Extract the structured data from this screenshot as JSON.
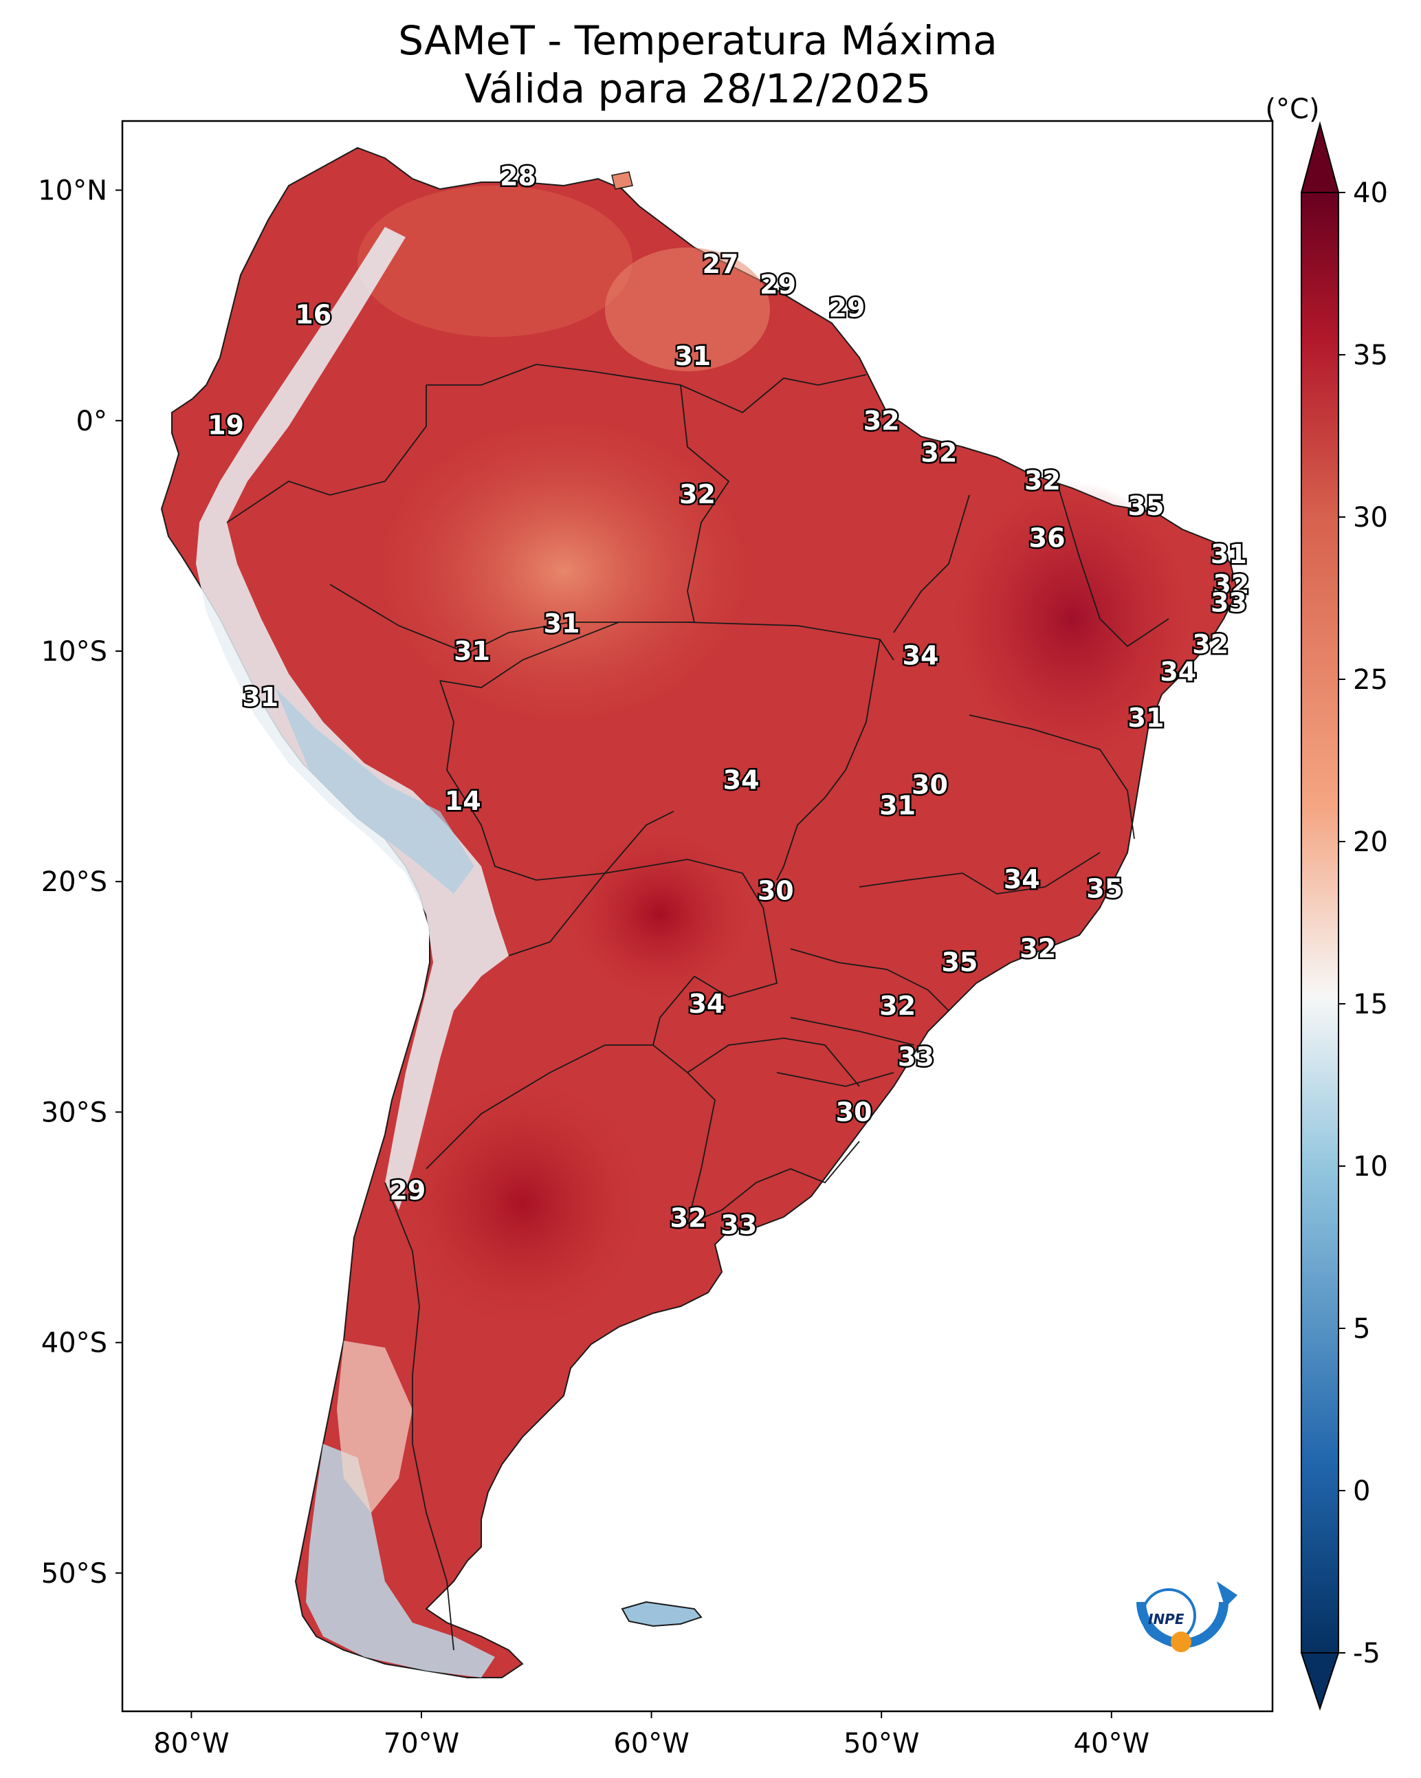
{
  "title": {
    "line1": "SAMeT - Temperatura Máxima",
    "line2": "Válida para 28/12/2025"
  },
  "colorbar": {
    "unit_label": "(°C)",
    "ticks": [
      "40",
      "35",
      "30",
      "25",
      "20",
      "15",
      "10",
      "5",
      "0",
      "-5"
    ],
    "range": [
      -5,
      40
    ],
    "colors": {
      "cold_end": "#053061",
      "cool": "#4393c3",
      "mid": "#f7f7f7",
      "warm": "#f4a582",
      "hot_end": "#67001f"
    }
  },
  "axes": {
    "lat_ticks": [
      "10°N",
      "0°",
      "10°S",
      "20°S",
      "30°S",
      "40°S",
      "50°S"
    ],
    "lon_ticks": [
      "80°W",
      "70°W",
      "60°W",
      "50°W",
      "40°W"
    ],
    "lon_range": [
      -83,
      -33
    ],
    "lat_range": [
      -56,
      13
    ]
  },
  "stations": [
    {
      "value": "28",
      "lon": -65.8,
      "lat": 10.6
    },
    {
      "value": "27",
      "lon": -57.0,
      "lat": 6.8
    },
    {
      "value": "29",
      "lon": -54.5,
      "lat": 5.9
    },
    {
      "value": "29",
      "lon": -51.5,
      "lat": 4.9
    },
    {
      "value": "16",
      "lon": -74.7,
      "lat": 4.6
    },
    {
      "value": "31",
      "lon": -58.2,
      "lat": 2.8
    },
    {
      "value": "19",
      "lon": -78.5,
      "lat": -0.2
    },
    {
      "value": "32",
      "lon": -50.0,
      "lat": 0.0
    },
    {
      "value": "32",
      "lon": -47.5,
      "lat": -1.4
    },
    {
      "value": "32",
      "lon": -43.0,
      "lat": -2.6
    },
    {
      "value": "32",
      "lon": -58.0,
      "lat": -3.2
    },
    {
      "value": "35",
      "lon": -38.5,
      "lat": -3.7
    },
    {
      "value": "36",
      "lon": -42.8,
      "lat": -5.1
    },
    {
      "value": "31",
      "lon": -34.9,
      "lat": -5.8
    },
    {
      "value": "32",
      "lon": -34.8,
      "lat": -7.1
    },
    {
      "value": "33",
      "lon": -34.9,
      "lat": -7.9
    },
    {
      "value": "31",
      "lon": -63.9,
      "lat": -8.8
    },
    {
      "value": "32",
      "lon": -35.7,
      "lat": -9.7
    },
    {
      "value": "31",
      "lon": -67.8,
      "lat": -10.0
    },
    {
      "value": "34",
      "lon": -48.3,
      "lat": -10.2
    },
    {
      "value": "34",
      "lon": -37.1,
      "lat": -10.9
    },
    {
      "value": "31",
      "lon": -77.0,
      "lat": -12.0
    },
    {
      "value": "31",
      "lon": -38.5,
      "lat": -12.9
    },
    {
      "value": "34",
      "lon": -56.1,
      "lat": -15.6
    },
    {
      "value": "30",
      "lon": -47.9,
      "lat": -15.8
    },
    {
      "value": "14",
      "lon": -68.2,
      "lat": -16.5
    },
    {
      "value": "31",
      "lon": -49.3,
      "lat": -16.7
    },
    {
      "value": "34",
      "lon": -43.9,
      "lat": -19.9
    },
    {
      "value": "35",
      "lon": -40.3,
      "lat": -20.3
    },
    {
      "value": "30",
      "lon": -54.6,
      "lat": -20.4
    },
    {
      "value": "32",
      "lon": -43.2,
      "lat": -22.9
    },
    {
      "value": "35",
      "lon": -46.6,
      "lat": -23.5
    },
    {
      "value": "34",
      "lon": -57.6,
      "lat": -25.3
    },
    {
      "value": "32",
      "lon": -49.3,
      "lat": -25.4
    },
    {
      "value": "33",
      "lon": -48.5,
      "lat": -27.6
    },
    {
      "value": "30",
      "lon": -51.2,
      "lat": -30.0
    },
    {
      "value": "29",
      "lon": -70.6,
      "lat": -33.4
    },
    {
      "value": "32",
      "lon": -58.4,
      "lat": -34.6
    },
    {
      "value": "33",
      "lon": -56.2,
      "lat": -34.9
    }
  ],
  "logo": {
    "text": "INPE"
  }
}
